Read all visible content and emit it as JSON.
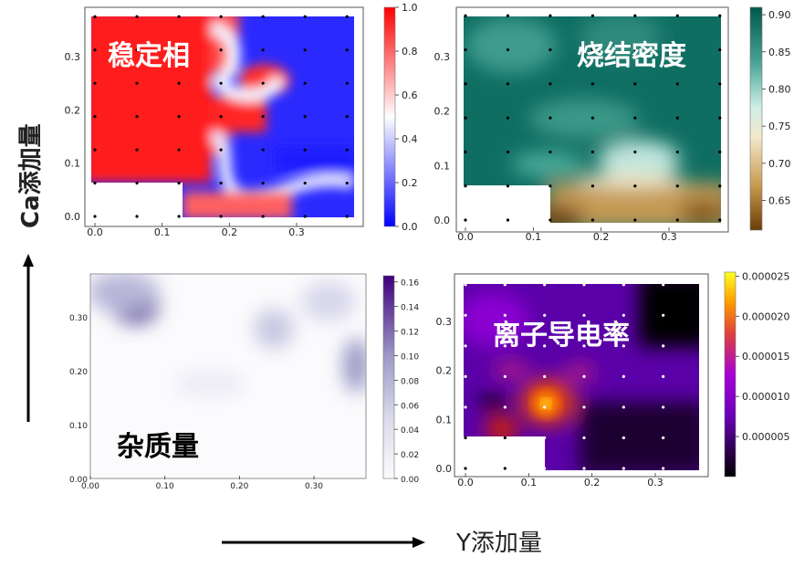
{
  "axes": {
    "y_label": "Ca添加量",
    "x_label": "Y添加量"
  },
  "chart_data": [
    {
      "type": "heatmap",
      "title": "稳定相",
      "colormap": "bwr",
      "xticks": [
        "0.0",
        "0.1",
        "0.2",
        "0.3"
      ],
      "yticks": [
        "0.0",
        "0.1",
        "0.2",
        "0.3"
      ],
      "xlim": [
        -0.01,
        0.39
      ],
      "ylim": [
        -0.01,
        0.39
      ],
      "colorbar_ticks": [
        "0.0",
        "0.2",
        "0.4",
        "0.6",
        "0.8",
        "1.0"
      ],
      "colorbar_range": [
        0.0,
        1.0
      ]
    },
    {
      "type": "heatmap",
      "title": "烧结密度",
      "colormap": "BrBG",
      "xticks": [
        "0.0",
        "0.1",
        "0.2",
        "0.3"
      ],
      "yticks": [
        "0.0",
        "0.1",
        "0.2",
        "0.3"
      ],
      "xlim": [
        -0.01,
        0.39
      ],
      "ylim": [
        -0.01,
        0.39
      ],
      "colorbar_ticks": [
        "0.65",
        "0.70",
        "0.75",
        "0.80",
        "0.85",
        "0.90"
      ],
      "colorbar_range": [
        0.61,
        0.91
      ]
    },
    {
      "type": "heatmap",
      "title": "杂质量",
      "colormap": "Purples",
      "xticks": [
        "0.00",
        "0.10",
        "0.20",
        "0.30"
      ],
      "yticks": [
        "0.00",
        "0.10",
        "0.20",
        "0.30"
      ],
      "xlim": [
        0.0,
        0.37
      ],
      "ylim": [
        0.0,
        0.37
      ],
      "colorbar_ticks": [
        "0.00",
        "0.02",
        "0.04",
        "0.06",
        "0.08",
        "0.10",
        "0.12",
        "0.14",
        "0.16"
      ],
      "colorbar_range": [
        0.0,
        0.165
      ]
    },
    {
      "type": "heatmap",
      "title": "离子导电率",
      "colormap": "gnuplot",
      "xticks": [
        "0.0",
        "0.1",
        "0.2",
        "0.3"
      ],
      "yticks": [
        "0.0",
        "0.1",
        "0.2",
        "0.3"
      ],
      "xlim": [
        -0.01,
        0.39
      ],
      "ylim": [
        -0.01,
        0.39
      ],
      "colorbar_ticks": [
        "0.000005",
        "0.000010",
        "0.000015",
        "0.000020",
        "0.000025"
      ],
      "colorbar_range": [
        0.0,
        2.55e-05
      ]
    }
  ]
}
